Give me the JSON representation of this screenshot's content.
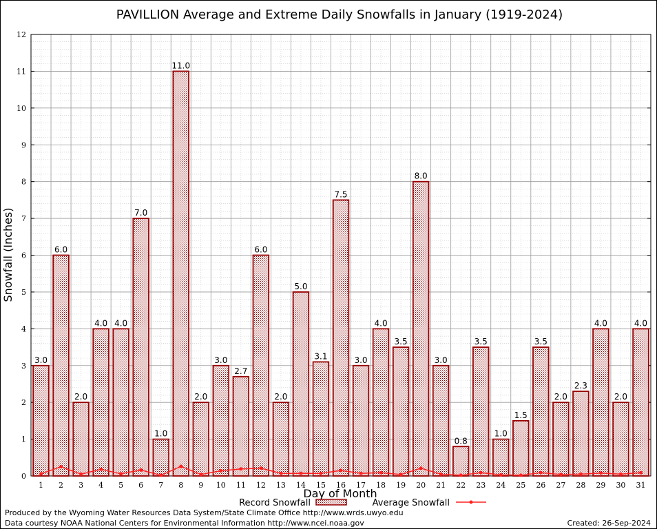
{
  "chart_data": {
    "type": "bar",
    "title": "PAVILLION Average and Extreme Daily Snowfalls in January (1919-2024)",
    "xlabel": "Day of Month",
    "ylabel": "Snowfall (Inches)",
    "ylim": [
      0,
      12
    ],
    "yticks": [
      "0",
      "1",
      "2",
      "3",
      "4",
      "5",
      "6",
      "7",
      "8",
      "9",
      "10",
      "11",
      "12"
    ],
    "categories": [
      "1",
      "2",
      "3",
      "4",
      "5",
      "6",
      "7",
      "8",
      "9",
      "10",
      "11",
      "12",
      "13",
      "14",
      "15",
      "16",
      "17",
      "18",
      "19",
      "20",
      "21",
      "22",
      "23",
      "24",
      "25",
      "26",
      "27",
      "28",
      "29",
      "30",
      "31"
    ],
    "series": [
      {
        "name": "Record Snowfall",
        "values": [
          3.0,
          6.0,
          2.0,
          4.0,
          4.0,
          7.0,
          1.0,
          11.0,
          2.0,
          3.0,
          2.7,
          6.0,
          2.0,
          5.0,
          3.1,
          7.5,
          3.0,
          4.0,
          3.5,
          8.0,
          3.0,
          0.8,
          3.5,
          1.0,
          1.5,
          3.5,
          2.0,
          2.3,
          4.0,
          2.0,
          4.0
        ],
        "labels": [
          "3.0",
          "6.0",
          "2.0",
          "4.0",
          "4.0",
          "7.0",
          "1.0",
          "11.0",
          "2.0",
          "3.0",
          "2.7",
          "6.0",
          "2.0",
          "5.0",
          "3.1",
          "7.5",
          "3.0",
          "4.0",
          "3.5",
          "8.0",
          "3.0",
          "0.8",
          "3.5",
          "1.0",
          "1.5",
          "3.5",
          "2.0",
          "2.3",
          "4.0",
          "2.0",
          "4.0"
        ],
        "color": "#990000"
      },
      {
        "name": "Average Snowfall",
        "values": [
          0.06,
          0.25,
          0.05,
          0.18,
          0.06,
          0.16,
          0.02,
          0.26,
          0.04,
          0.14,
          0.19,
          0.21,
          0.07,
          0.07,
          0.07,
          0.15,
          0.07,
          0.09,
          0.04,
          0.21,
          0.05,
          0.02,
          0.09,
          0.03,
          0.02,
          0.09,
          0.04,
          0.05,
          0.08,
          0.05,
          0.09
        ],
        "color": "#ff2020"
      }
    ],
    "grid": true,
    "legend": "bottom-center"
  },
  "footer": {
    "producer": "Produced by the Wyoming Water Resources Data System/State Climate Office http://www.wrds.uwyo.edu",
    "source": "Data courtesy NOAA National Centers for Environmental Information http://www.ncei.noaa.gov",
    "created": "Created:  26-Sep-2024"
  }
}
